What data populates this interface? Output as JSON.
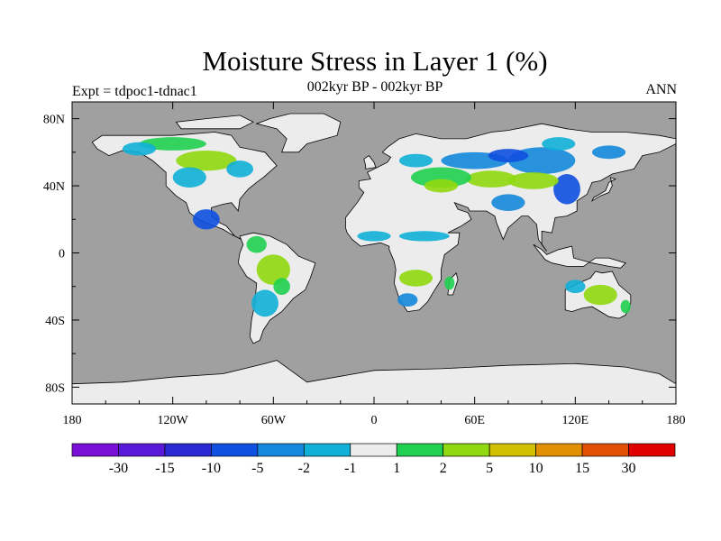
{
  "title": "Moisture Stress in Layer 1 (%)",
  "subtitle": "002kyr BP - 002kyr BP",
  "left_label": "Expt = tdpoc1-tdnac1",
  "right_label": "ANN",
  "colors": {
    "ocean": "#a0a0a0",
    "land_neutral": "#ececec",
    "coast": "#000000"
  },
  "axes": {
    "y_ticks": [
      "80N",
      "40N",
      "0",
      "40S",
      "80S"
    ],
    "y_values": [
      80,
      40,
      0,
      -40,
      -80
    ],
    "x_ticks": [
      "180",
      "120W",
      "60W",
      "0",
      "60E",
      "120E",
      "180"
    ],
    "x_values": [
      -180,
      -120,
      -60,
      0,
      60,
      120,
      180
    ],
    "lon_range": [
      -180,
      180
    ],
    "lat_range": [
      -90,
      90
    ]
  },
  "colorbar": {
    "colors": [
      "#7a10d8",
      "#5a18d8",
      "#2a28d0",
      "#1050e0",
      "#1488dc",
      "#10b0d8",
      "#ececec",
      "#20d050",
      "#90d810",
      "#d0c000",
      "#e09000",
      "#e05000",
      "#e00000"
    ],
    "labels": [
      "-30",
      "-15",
      "-10",
      "-5",
      "-2",
      "-1",
      "1",
      "2",
      "5",
      "10",
      "15",
      "30"
    ]
  }
}
